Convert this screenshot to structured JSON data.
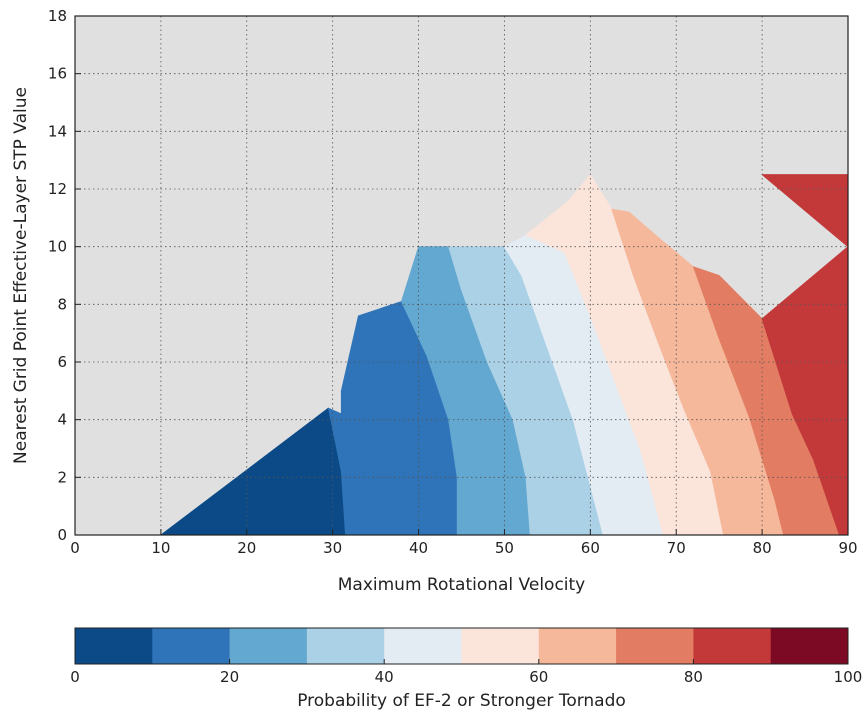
{
  "chart_data": {
    "type": "contour",
    "xlabel": "Maximum Rotational Velocity",
    "ylabel": "Nearest Grid Point Effective-Layer STP Value",
    "xlim": [
      0,
      90
    ],
    "ylim": [
      0,
      18
    ],
    "xticks": [
      "0",
      "10",
      "20",
      "30",
      "40",
      "50",
      "60",
      "70",
      "80",
      "90"
    ],
    "yticks": [
      "0",
      "2",
      "4",
      "6",
      "8",
      "10",
      "12",
      "14",
      "16",
      "18"
    ],
    "grid": true,
    "background_color": "#e0e0e0",
    "levels": [
      0,
      10,
      20,
      30,
      40,
      50,
      60,
      70,
      80,
      90,
      100
    ],
    "level_colors": [
      "#0b4a87",
      "#2f74b8",
      "#63a8d0",
      "#abd1e7",
      "#e4ecf3",
      "#fbe4da",
      "#f5b89b",
      "#e27d63",
      "#c3393a",
      "#7d0a25"
    ],
    "regions": [
      {
        "level": "0-10",
        "points": [
          [
            10,
            0
          ],
          [
            31.5,
            0
          ],
          [
            31,
            2.2
          ],
          [
            29.5,
            4.4
          ],
          [
            10,
            0
          ]
        ]
      },
      {
        "level": "10-20",
        "points": [
          [
            31.5,
            0
          ],
          [
            44.5,
            0
          ],
          [
            44.5,
            2
          ],
          [
            43.5,
            4
          ],
          [
            41,
            6.2
          ],
          [
            38,
            8.1
          ],
          [
            33,
            7.6
          ],
          [
            31,
            5
          ],
          [
            31,
            4.2
          ],
          [
            29.5,
            4.4
          ],
          [
            31,
            2.2
          ]
        ]
      },
      {
        "level": "20-30",
        "points": [
          [
            44.5,
            0
          ],
          [
            53,
            0
          ],
          [
            52.5,
            2
          ],
          [
            51,
            4
          ],
          [
            48,
            6
          ],
          [
            45,
            8.5
          ],
          [
            43.5,
            10
          ],
          [
            40,
            10
          ],
          [
            38,
            8.1
          ],
          [
            41,
            6.2
          ],
          [
            43.5,
            4
          ],
          [
            44.5,
            2
          ]
        ]
      },
      {
        "level": "30-40",
        "points": [
          [
            53,
            0
          ],
          [
            61.5,
            0
          ],
          [
            58,
            4
          ],
          [
            55,
            6.5
          ],
          [
            52,
            9
          ],
          [
            50,
            10
          ],
          [
            43.5,
            10
          ],
          [
            45,
            8.5
          ],
          [
            48,
            6
          ],
          [
            51,
            4
          ],
          [
            52.5,
            2
          ]
        ]
      },
      {
        "level": "40-50",
        "points": [
          [
            61.5,
            0
          ],
          [
            68.5,
            0
          ],
          [
            66,
            2.8
          ],
          [
            63,
            5.2
          ],
          [
            60,
            7.6
          ],
          [
            57,
            9.8
          ],
          [
            52.5,
            10.4
          ],
          [
            50,
            10
          ],
          [
            52,
            9
          ],
          [
            55,
            6.5
          ],
          [
            58,
            4
          ]
        ]
      },
      {
        "level": "50-60",
        "points": [
          [
            68.5,
            0
          ],
          [
            75.5,
            0
          ],
          [
            74,
            2.2
          ],
          [
            71,
            4.3
          ],
          [
            68,
            6.6
          ],
          [
            65,
            9
          ],
          [
            62.5,
            11.3
          ],
          [
            60,
            12.5
          ],
          [
            57.5,
            11.6
          ],
          [
            52.5,
            10.4
          ],
          [
            57,
            9.8
          ],
          [
            60,
            7.6
          ],
          [
            63,
            5.2
          ],
          [
            66,
            2.8
          ]
        ]
      },
      {
        "level": "60-70",
        "points": [
          [
            75.5,
            0
          ],
          [
            82.5,
            0
          ],
          [
            81.5,
            1.2
          ],
          [
            78.5,
            4.1
          ],
          [
            75,
            6.8
          ],
          [
            72,
            9.3
          ],
          [
            68,
            10.3
          ],
          [
            64.5,
            11.2
          ],
          [
            62.5,
            11.3
          ],
          [
            65,
            9
          ],
          [
            68,
            6.6
          ],
          [
            71,
            4.3
          ],
          [
            74,
            2.2
          ]
        ]
      },
      {
        "level": "70-80",
        "points": [
          [
            82.5,
            0
          ],
          [
            89,
            0
          ],
          [
            86,
            2.6
          ],
          [
            83.5,
            4.2
          ],
          [
            80,
            7.5
          ],
          [
            75,
            9
          ],
          [
            72,
            9.3
          ],
          [
            75,
            6.8
          ],
          [
            78.5,
            4.1
          ],
          [
            81.5,
            1.2
          ]
        ]
      },
      {
        "level": "80-90",
        "points": [
          [
            89,
            0
          ],
          [
            90,
            0
          ],
          [
            90,
            10
          ],
          [
            80,
            12.5
          ],
          [
            90,
            12.5
          ],
          [
            90,
            10
          ],
          [
            80,
            7.5
          ],
          [
            83.5,
            4.2
          ],
          [
            86,
            2.6
          ]
        ]
      },
      {
        "level": "80-90",
        "points": [
          [
            90,
            10
          ],
          [
            90,
            0
          ],
          [
            89,
            0
          ],
          [
            87.5,
            2.5
          ],
          [
            86,
            4.5
          ],
          [
            84,
            6
          ],
          [
            80,
            7.5
          ],
          [
            90,
            10
          ]
        ]
      },
      {
        "level": "80-90",
        "points": [
          [
            80,
            12.5
          ],
          [
            90,
            12.5
          ],
          [
            90,
            10
          ],
          [
            80,
            12.5
          ]
        ]
      }
    ],
    "colorbar": {
      "label": "Probability of EF-2 or Stronger Tornado",
      "ticks": [
        "0",
        "20",
        "40",
        "60",
        "80",
        "100"
      ],
      "range": [
        0,
        100
      ]
    }
  }
}
